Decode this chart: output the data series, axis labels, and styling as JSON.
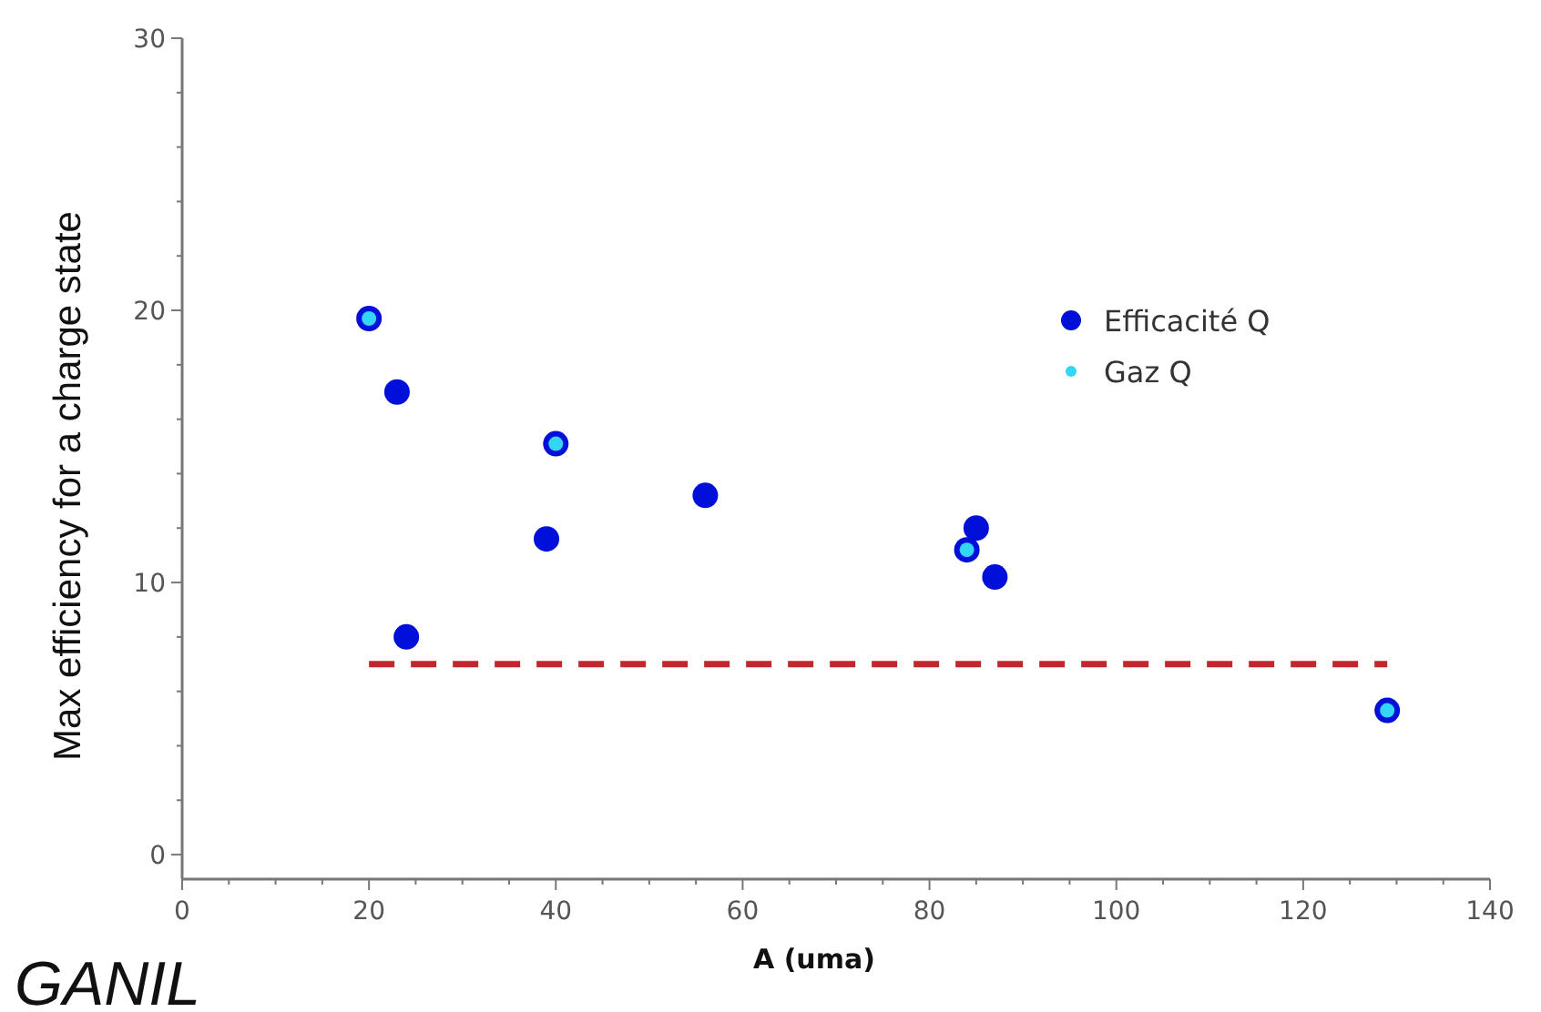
{
  "chart_data": {
    "type": "scatter",
    "xlabel": "A (uma)",
    "ylabel": "Max efficiency for a charge state",
    "xlim": [
      0,
      140
    ],
    "ylim": [
      -0.9,
      30
    ],
    "xticks": [
      0,
      {
        "value": 5,
        "label": null
      },
      {
        "value": 10,
        "label": null
      },
      {
        "value": 15,
        "label": null
      },
      20,
      {
        "value": 25,
        "label": null
      },
      {
        "value": 30,
        "label": null
      },
      {
        "value": 35,
        "label": null
      },
      40,
      {
        "value": 45,
        "label": null
      },
      {
        "value": 50,
        "label": null
      },
      {
        "value": 55,
        "label": null
      },
      60,
      {
        "value": 65,
        "label": null
      },
      {
        "value": 70,
        "label": null
      },
      {
        "value": 75,
        "label": null
      },
      80,
      {
        "value": 85,
        "label": null
      },
      {
        "value": 90,
        "label": null
      },
      {
        "value": 95,
        "label": null
      },
      100,
      {
        "value": 105,
        "label": null
      },
      {
        "value": 110,
        "label": null
      },
      {
        "value": 115,
        "label": null
      },
      120,
      {
        "value": 125,
        "label": null
      },
      {
        "value": 130,
        "label": null
      },
      {
        "value": 135,
        "label": null
      },
      140
    ],
    "yticks": [
      0,
      {
        "value": 2,
        "label": null
      },
      {
        "value": 4,
        "label": null
      },
      {
        "value": 6,
        "label": null
      },
      {
        "value": 8,
        "label": null
      },
      10,
      {
        "value": 12,
        "label": null
      },
      {
        "value": 14,
        "label": null
      },
      {
        "value": 16,
        "label": null
      },
      {
        "value": 18,
        "label": null
      },
      20,
      {
        "value": 22,
        "label": null
      },
      {
        "value": 24,
        "label": null
      },
      {
        "value": 26,
        "label": null
      },
      {
        "value": 28,
        "label": null
      },
      30
    ],
    "legend": "top right",
    "grid": false,
    "series": [
      {
        "name": "Efficacité Q",
        "color": "#0010d8",
        "marker": "circle",
        "x": [
          20,
          23,
          24,
          39,
          40,
          56,
          84,
          85,
          87,
          129
        ],
        "values": [
          19.7,
          17,
          8,
          11.6,
          15.1,
          13.2,
          11.2,
          12,
          10.2,
          5.3
        ]
      },
      {
        "name": "Gaz Q",
        "color": "#33d6f5",
        "marker": "circle",
        "x": [
          20,
          40,
          84,
          129
        ],
        "values": [
          19.7,
          15.1,
          11.2,
          5.3
        ]
      },
      {
        "type": "line",
        "color": "#c0282d",
        "line_style": "dashed",
        "x": [
          20,
          129
        ],
        "values": [
          7,
          7
        ]
      }
    ],
    "annotations": [
      "GANIL"
    ]
  }
}
